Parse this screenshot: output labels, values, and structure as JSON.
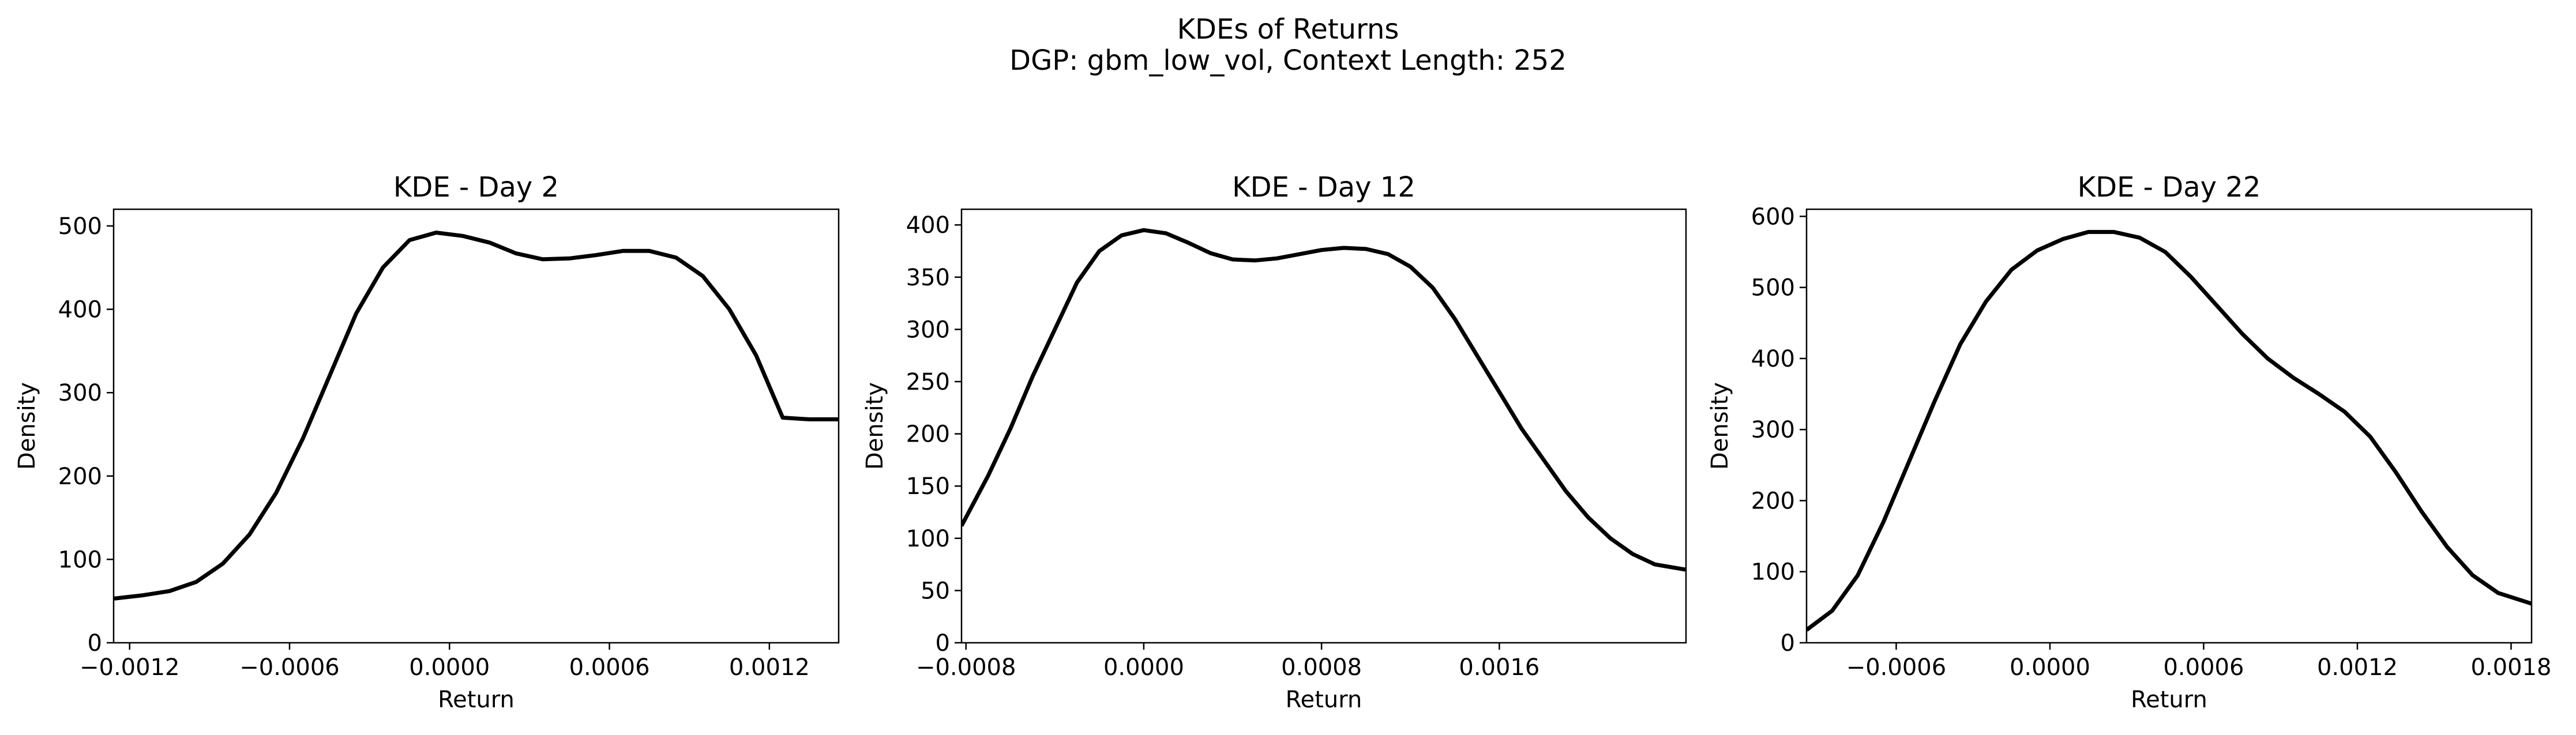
{
  "figure": {
    "title": "KDEs of Returns",
    "subtitle": "DGP: gbm_low_vol, Context Length: 252"
  },
  "chart_data": [
    {
      "type": "line",
      "title": "KDE - Day 2",
      "xlabel": "Return",
      "ylabel": "Density",
      "xlim": [
        -0.00126,
        0.00146
      ],
      "ylim": [
        0,
        520
      ],
      "xticks": [
        -0.0012,
        -0.0006,
        0.0,
        0.0006,
        0.0012
      ],
      "xtick_labels": [
        "−0.0012",
        "−0.0006",
        "0.0000",
        "0.0006",
        "0.0012"
      ],
      "yticks": [
        0,
        100,
        200,
        300,
        400,
        500
      ],
      "ytick_labels": [
        "0",
        "100",
        "200",
        "300",
        "400",
        "500"
      ],
      "grid": false,
      "line_color": "#000000",
      "series": [
        {
          "x": [
            -0.00126,
            -0.00115,
            -0.00105,
            -0.00095,
            -0.00085,
            -0.00075,
            -0.00065,
            -0.00055,
            -0.00045,
            -0.00035,
            -0.00025,
            -0.00015,
            -5e-05,
            5e-05,
            0.00015,
            0.00025,
            0.00035,
            0.00045,
            0.00055,
            0.00065,
            0.00075,
            0.00085,
            0.00095,
            0.00105,
            0.00115,
            0.00125,
            0.00135,
            0.00146
          ],
          "y": [
            53,
            57,
            62,
            73,
            95,
            130,
            180,
            245,
            320,
            395,
            450,
            483,
            492,
            488,
            480,
            467,
            460,
            461,
            465,
            470,
            470,
            462,
            440,
            400,
            345,
            270,
            268,
            268
          ]
        }
      ]
    },
    {
      "type": "line",
      "title": "KDE - Day 12",
      "xlabel": "Return",
      "ylabel": "Density",
      "xlim": [
        -0.00082,
        0.00244
      ],
      "ylim": [
        0,
        415
      ],
      "xticks": [
        -0.0008,
        0.0,
        0.0008,
        0.0016
      ],
      "xtick_labels": [
        "−0.0008",
        "0.0000",
        "0.0008",
        "0.0016"
      ],
      "yticks": [
        0,
        50,
        100,
        150,
        200,
        250,
        300,
        350,
        400
      ],
      "ytick_labels": [
        "0",
        "50",
        "100",
        "150",
        "200",
        "250",
        "300",
        "350",
        "400"
      ],
      "grid": false,
      "line_color": "#000000",
      "series": [
        {
          "x": [
            -0.00082,
            -0.0007,
            -0.0006,
            -0.0005,
            -0.0004,
            -0.0003,
            -0.0002,
            -0.0001,
            0.0,
            0.0001,
            0.0002,
            0.0003,
            0.0004,
            0.0005,
            0.0006,
            0.0007,
            0.0008,
            0.0009,
            0.001,
            0.0011,
            0.0012,
            0.0013,
            0.0014,
            0.0015,
            0.0016,
            0.0017,
            0.0018,
            0.0019,
            0.002,
            0.0021,
            0.0022,
            0.0023,
            0.00244
          ],
          "y": [
            112,
            160,
            205,
            255,
            300,
            345,
            375,
            390,
            395,
            392,
            383,
            373,
            367,
            366,
            368,
            372,
            376,
            378,
            377,
            372,
            360,
            340,
            310,
            275,
            240,
            205,
            175,
            145,
            120,
            100,
            85,
            75,
            70
          ]
        }
      ]
    },
    {
      "type": "line",
      "title": "KDE - Day 22",
      "xlabel": "Return",
      "ylabel": "Density",
      "xlim": [
        -0.00095,
        0.00188
      ],
      "ylim": [
        0,
        610
      ],
      "xticks": [
        -0.0006,
        0.0,
        0.0006,
        0.0012,
        0.0018
      ],
      "xtick_labels": [
        "−0.0006",
        "0.0000",
        "0.0006",
        "0.0012",
        "0.0018"
      ],
      "yticks": [
        0,
        100,
        200,
        300,
        400,
        500,
        600
      ],
      "ytick_labels": [
        "0",
        "100",
        "200",
        "300",
        "400",
        "500",
        "600"
      ],
      "grid": false,
      "line_color": "#000000",
      "series": [
        {
          "x": [
            -0.00095,
            -0.00085,
            -0.00075,
            -0.00065,
            -0.00055,
            -0.00045,
            -0.00035,
            -0.00025,
            -0.00015,
            -5e-05,
            5e-05,
            0.00015,
            0.00025,
            0.00035,
            0.00045,
            0.00055,
            0.00065,
            0.00075,
            0.00085,
            0.00095,
            0.00105,
            0.00115,
            0.00125,
            0.00135,
            0.00145,
            0.00155,
            0.00165,
            0.00175,
            0.00188
          ],
          "y": [
            18,
            45,
            95,
            170,
            255,
            340,
            420,
            480,
            525,
            552,
            568,
            578,
            578,
            570,
            550,
            515,
            475,
            435,
            400,
            373,
            350,
            325,
            290,
            240,
            185,
            135,
            95,
            70,
            55
          ]
        }
      ]
    }
  ]
}
